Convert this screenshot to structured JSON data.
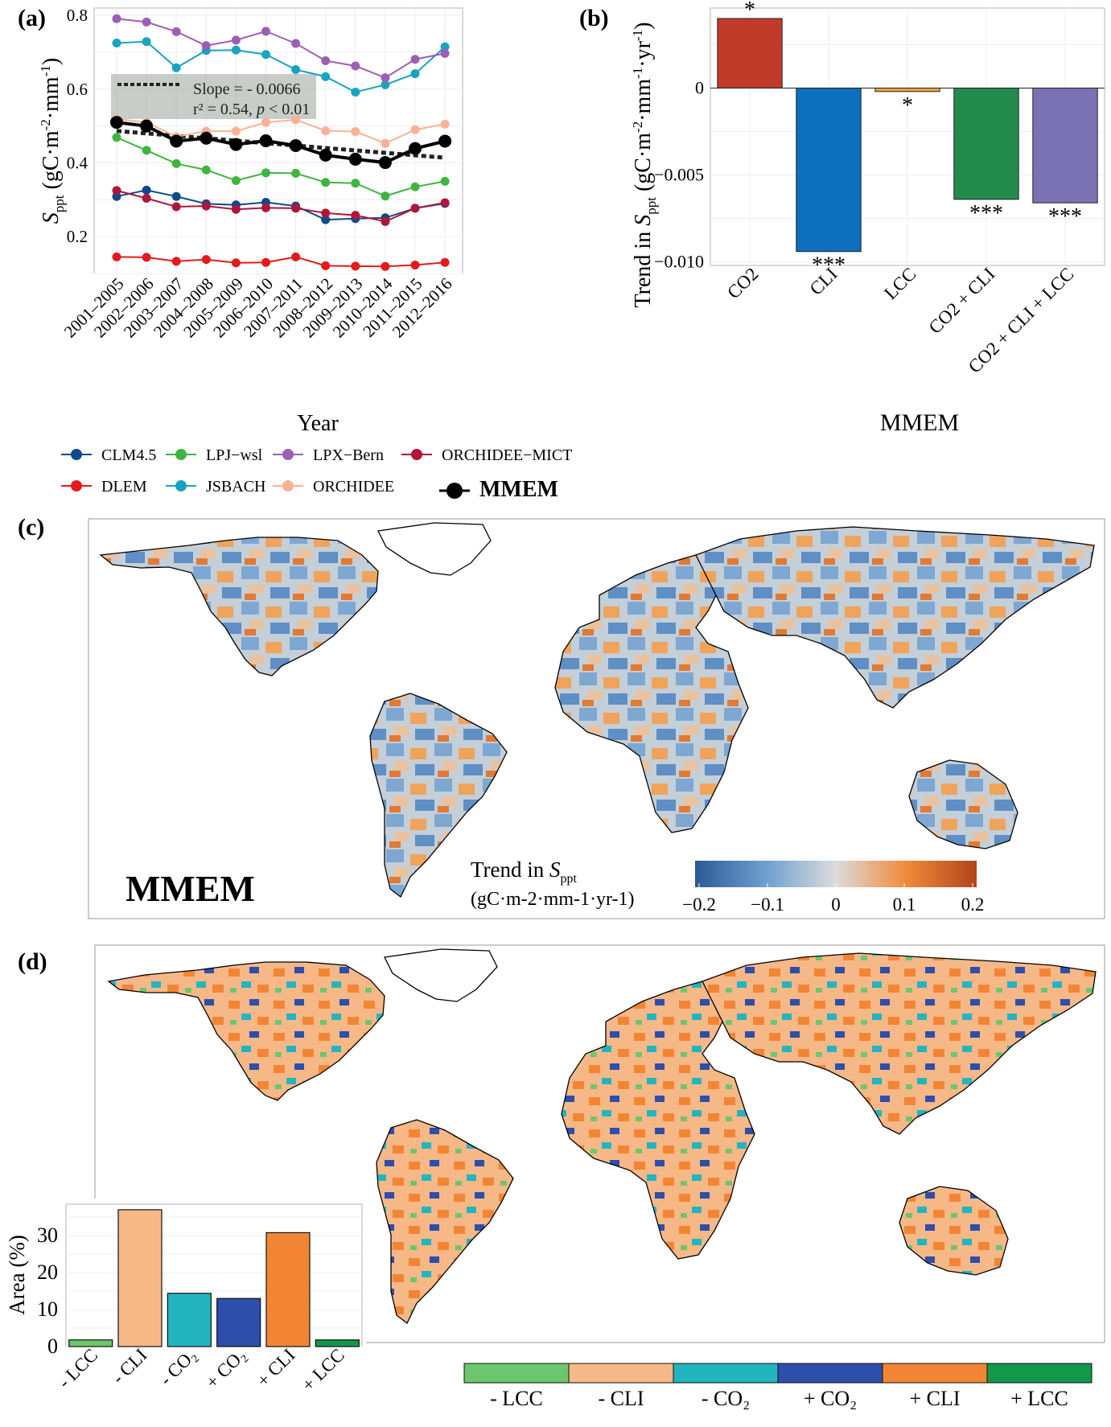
{
  "panel_labels": {
    "a": "(a)",
    "b": "(b)",
    "c": "(c)",
    "d": "(d)"
  },
  "chart_data": [
    {
      "id": "a",
      "type": "line",
      "xlabel": "Year",
      "ylabel": "S_ppt (gC·m-2·mm-1)",
      "ylabel_parts": {
        "sym": "S",
        "sub": "ppt",
        "unit_open": " (gC·m",
        "sup1": "-2",
        "unit_mid": "·mm",
        "sup2": "-1",
        "unit_close": ")"
      },
      "ylim": [
        0.1,
        0.82
      ],
      "yticks": [
        0.2,
        0.4,
        0.6,
        0.8
      ],
      "ytick_labels": [
        "0.2",
        "0.4",
        "0.6",
        "0.8"
      ],
      "categories": [
        "2001–2005",
        "2002–2006",
        "2003–2007",
        "2004–2008",
        "2005–2009",
        "2006–2010",
        "2007–2011",
        "2008–2012",
        "2009–2013",
        "2010–2014",
        "2011–2015",
        "2012–2016"
      ],
      "series": [
        {
          "name": "CLM4.5",
          "color": "#0d4a8c",
          "values": [
            0.309,
            0.326,
            0.309,
            0.289,
            0.286,
            0.293,
            0.283,
            0.246,
            0.249,
            0.251,
            0.277,
            0.29
          ]
        },
        {
          "name": "DLEM",
          "color": "#e41a1c",
          "values": [
            0.145,
            0.144,
            0.133,
            0.138,
            0.129,
            0.13,
            0.145,
            0.121,
            0.12,
            0.119,
            0.123,
            0.13
          ]
        },
        {
          "name": "LPJ−wsl",
          "color": "#3fb53f",
          "values": [
            0.469,
            0.434,
            0.398,
            0.381,
            0.352,
            0.373,
            0.372,
            0.347,
            0.345,
            0.31,
            0.335,
            0.35
          ]
        },
        {
          "name": "JSBACH",
          "color": "#1aa3bf",
          "values": [
            0.725,
            0.729,
            0.658,
            0.705,
            0.706,
            0.694,
            0.653,
            0.634,
            0.592,
            0.612,
            0.642,
            0.715
          ]
        },
        {
          "name": "LPX−Bern",
          "color": "#9c5fb5",
          "values": [
            0.791,
            0.782,
            0.756,
            0.718,
            0.733,
            0.757,
            0.724,
            0.677,
            0.663,
            0.631,
            0.681,
            0.697
          ]
        },
        {
          "name": "ORCHIDEE",
          "color": "#f9b294",
          "values": [
            0.519,
            0.51,
            0.471,
            0.486,
            0.486,
            0.51,
            0.517,
            0.487,
            0.485,
            0.453,
            0.49,
            0.505
          ]
        },
        {
          "name": "ORCHIDEE−MICT",
          "color": "#b0153a",
          "values": [
            0.325,
            0.304,
            0.281,
            0.283,
            0.274,
            0.278,
            0.277,
            0.264,
            0.258,
            0.241,
            0.277,
            0.292
          ]
        },
        {
          "name": "MMEM",
          "color": "#000000",
          "bold": true,
          "values": [
            0.51,
            0.5,
            0.459,
            0.467,
            0.45,
            0.46,
            0.447,
            0.421,
            0.41,
            0.401,
            0.439,
            0.459
          ]
        }
      ],
      "trend": {
        "start": 0.4866,
        "slope": -0.0066
      },
      "annotation": {
        "line1": "Slope = - 0.0066",
        "r2_text": "r² = 0.54, ",
        "p_sym": "p",
        "p_text": " < 0.01"
      }
    },
    {
      "id": "b",
      "type": "bar",
      "ylabel_parts": {
        "pre": "Trend in ",
        "sym": "S",
        "sub": "ppt",
        "unit_open": " (gC·m",
        "sup1": "-2",
        "unit_mid": "·mm",
        "sup2": "-1",
        "unit_mid2": "·yr",
        "sup3": "-1",
        "unit_close": ")"
      },
      "xlabel": "MMEM",
      "categories": [
        "CO2",
        "CLI",
        "LCC",
        "CO2 + CLI",
        "CO2 + CLI + LCC"
      ],
      "values": [
        0.004,
        -0.0094,
        -0.0002,
        -0.0064,
        -0.0066
      ],
      "colors": [
        "#c13b2a",
        "#0d6fbd",
        "#f2a040",
        "#228b4c",
        "#7a72b2"
      ],
      "significance": [
        "*",
        "***",
        "*",
        "***",
        "***"
      ],
      "ylim": [
        -0.0102,
        0.0046
      ],
      "yticks": [
        0,
        -0.005,
        -0.01
      ],
      "ytick_labels": [
        "0",
        "−0.005",
        "−0.010"
      ]
    },
    {
      "id": "d-inset",
      "type": "bar",
      "ylabel": "Area (%)",
      "categories": [
        "- LCC",
        "- CLI",
        "- CO₂",
        "+ CO₂",
        "+ CLI",
        "+ LCC"
      ],
      "values": [
        1.8,
        37.0,
        14.4,
        13.0,
        30.8,
        1.8
      ],
      "colors": [
        "#6cc76c",
        "#f7b888",
        "#23b5bf",
        "#2e4eab",
        "#f28534",
        "#13984a"
      ],
      "ylim": [
        0,
        38.5
      ],
      "yticks": [
        0,
        10,
        20,
        30
      ],
      "ytick_labels": [
        "0",
        "10",
        "20",
        "30"
      ]
    }
  ],
  "legend_a": [
    "CLM4.5",
    "LPJ−wsl",
    "LPX−Bern",
    "ORCHIDEE−MICT",
    "DLEM",
    "JSBACH",
    "ORCHIDEE",
    "MMEM"
  ],
  "map_c": {
    "label": "MMEM",
    "colorbar_title_pre": "Trend in ",
    "colorbar_sym": "S",
    "colorbar_sub": "ppt",
    "colorbar_unit": "(gC·m-2·mm-1·yr-1)",
    "colorbar_ticks": [
      "−0.2",
      "−0.1",
      "0",
      "0.1",
      "0.2"
    ],
    "colorbar_colors": [
      "#2b5a94",
      "#6e9fcf",
      "#dcdcdc",
      "#f08a3c",
      "#b2441a"
    ]
  },
  "map_d": {
    "legend": [
      {
        "label": "- LCC",
        "color": "#6cc76c"
      },
      {
        "label": "- CLI",
        "color": "#f7b888"
      },
      {
        "label": "- CO₂",
        "color": "#23b5bf"
      },
      {
        "label": "+ CO₂",
        "color": "#2e4eab"
      },
      {
        "label": "+ CLI",
        "color": "#f28534"
      },
      {
        "label": "+ LCC",
        "color": "#13984a"
      }
    ]
  }
}
